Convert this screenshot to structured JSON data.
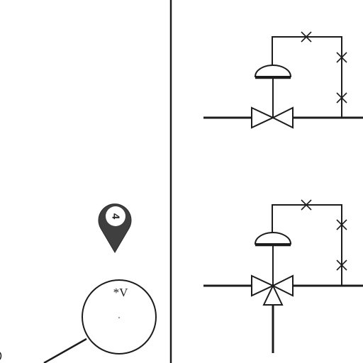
{
  "marker": {
    "number": "4",
    "color": "#3f3f3f"
  },
  "bubble": {
    "label": "*V"
  },
  "colors": {
    "line": "#1c1c1c",
    "background": "#ffffff"
  },
  "icons": [
    "location-pin-icon",
    "control-valve-symbol",
    "three-way-control-valve-symbol",
    "block-x-mark"
  ]
}
